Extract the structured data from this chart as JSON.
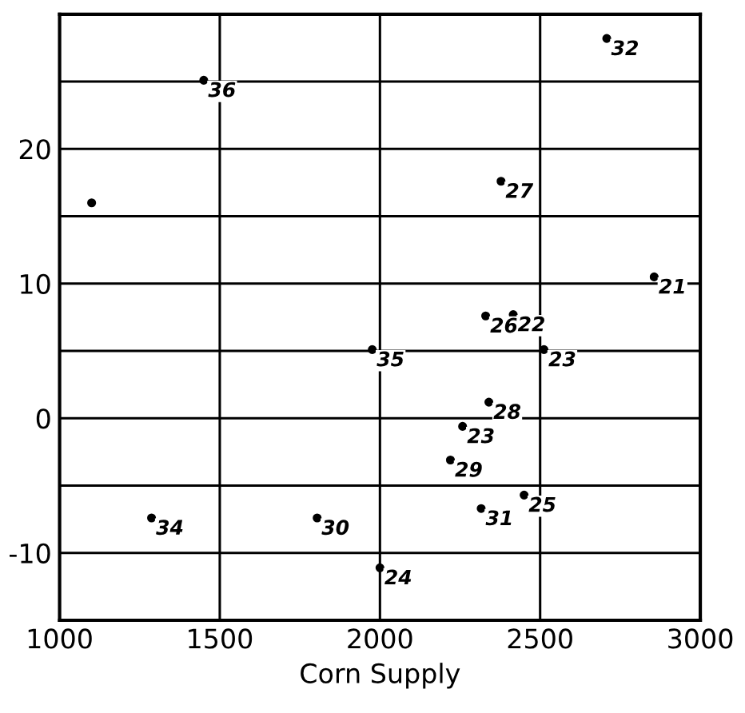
{
  "chart_data": {
    "type": "scatter",
    "xlabel": "Corn Supply",
    "series": [
      {
        "color": "#000000",
        "x": [
          1450,
          1100,
          2708,
          2378,
          2856,
          2330,
          2416,
          1976,
          2512,
          2340,
          2258,
          2220,
          2450,
          2316,
          2000,
          1287,
          1804
        ],
        "values": [
          25.1,
          16,
          28.2,
          17.6,
          10.5,
          7.6,
          7.7,
          5.1,
          5.1,
          1.2,
          -0.6,
          -3.1,
          -5.7,
          -6.7,
          -11.1,
          -7.4,
          -7.4
        ]
      }
    ],
    "annotations": [
      {
        "text": "36",
        "x": 1450,
        "y": 25.1
      },
      {
        "text": "32",
        "x": 2708,
        "y": 28.2
      },
      {
        "text": "27",
        "x": 2378,
        "y": 17.6
      },
      {
        "text": "21",
        "x": 2856,
        "y": 10.5
      },
      {
        "text": "26",
        "x": 2330,
        "y": 7.6
      },
      {
        "text": "22",
        "x": 2416,
        "y": 7.7
      },
      {
        "text": "35",
        "x": 1976,
        "y": 5.1
      },
      {
        "text": "23",
        "x": 2512,
        "y": 5.1
      },
      {
        "text": "28",
        "x": 2340,
        "y": 1.2
      },
      {
        "text": "23",
        "x": 2258,
        "y": -0.6
      },
      {
        "text": "29",
        "x": 2220,
        "y": -3.1
      },
      {
        "text": "25",
        "x": 2450,
        "y": -5.7
      },
      {
        "text": "31",
        "x": 2316,
        "y": -6.7
      },
      {
        "text": "24",
        "x": 2000,
        "y": -11.1
      },
      {
        "text": "34",
        "x": 1287,
        "y": -7.4
      },
      {
        "text": "30",
        "x": 1804,
        "y": -7.4
      }
    ],
    "xlim": [
      1000,
      3000
    ],
    "xticks": [
      1000,
      1500,
      2000,
      2500,
      3000
    ],
    "ylim": [
      -15,
      30
    ],
    "yticks": [
      {
        "value": -15,
        "label": null
      },
      -10,
      {
        "value": -5,
        "label": null
      },
      0,
      {
        "value": 5,
        "label": null
      },
      10,
      {
        "value": 15,
        "label": null
      },
      20,
      {
        "value": 25,
        "label": null
      },
      {
        "value": 30,
        "label": null
      }
    ],
    "grid": true,
    "marker": "circle"
  }
}
